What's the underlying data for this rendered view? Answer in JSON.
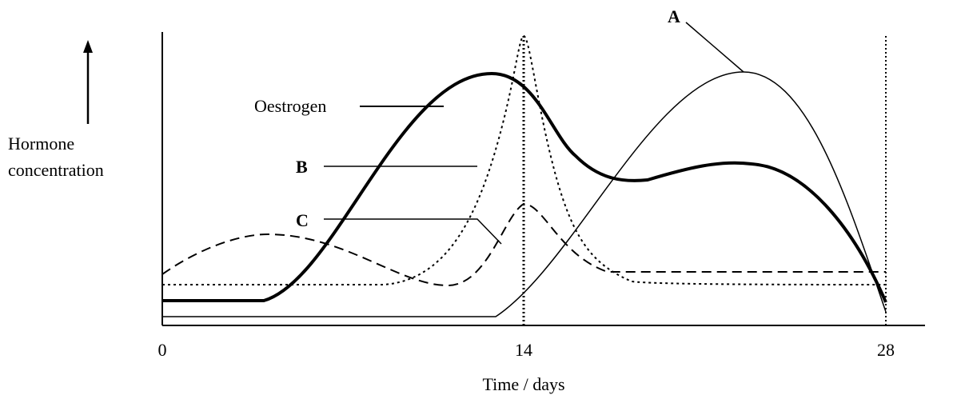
{
  "y_axis_label_line1": "Hormone",
  "y_axis_label_line2": "concentration",
  "x_axis_label": "Time / days",
  "x_ticks": [
    "0",
    "14",
    "28"
  ],
  "curve_labels": {
    "oestrogen": "Oestrogen",
    "a": "A",
    "b": "B",
    "c": "C"
  }
}
